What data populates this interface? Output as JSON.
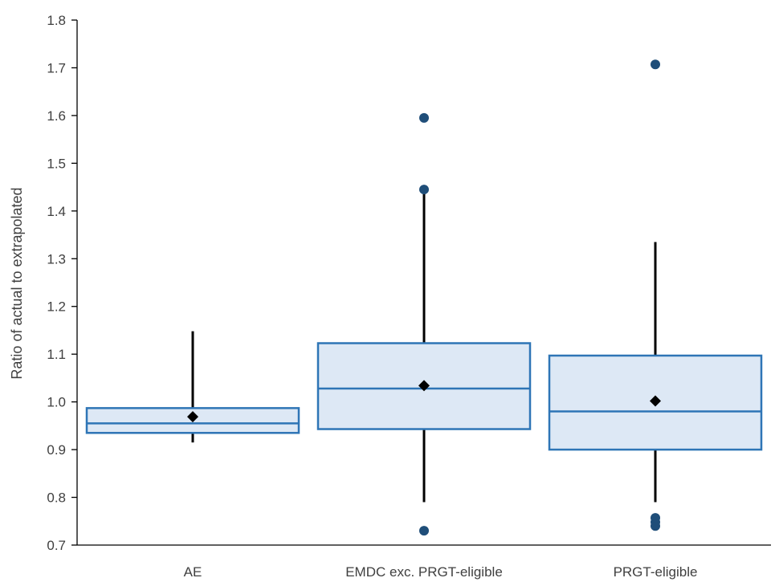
{
  "chart_data": {
    "type": "boxplot",
    "title": "",
    "xlabel": "",
    "ylabel": "Ratio of actual to extrapolated",
    "ylim": [
      0.7,
      1.8
    ],
    "ytick_step": 0.1,
    "grid": false,
    "legend": "none",
    "categories": [
      "AE",
      "EMDC exc. PRGT-eligible",
      "PRGT-eligible"
    ],
    "boxes": [
      {
        "category": "AE",
        "whisker_low": 0.915,
        "q1": 0.935,
        "median": 0.955,
        "q3": 0.987,
        "whisker_high": 1.148,
        "mean": 0.969,
        "outliers": []
      },
      {
        "category": "EMDC exc. PRGT-eligible",
        "whisker_low": 0.79,
        "q1": 0.943,
        "median": 1.028,
        "q3": 1.123,
        "whisker_high": 1.44,
        "mean": 1.034,
        "outliers": [
          0.73,
          1.445,
          1.595
        ]
      },
      {
        "category": "PRGT-eligible",
        "whisker_low": 0.79,
        "q1": 0.9,
        "median": 0.98,
        "q3": 1.097,
        "whisker_high": 1.335,
        "mean": 1.002,
        "outliers": [
          0.74,
          0.748,
          0.757,
          1.707
        ]
      }
    ],
    "colors": {
      "box_fill": "#dde8f5",
      "box_stroke": "#2e75b6",
      "whisker": "#000000",
      "mean_marker": "#000000",
      "outlier": "#1f4e79",
      "axis": "#000000",
      "text": "#404040"
    }
  }
}
